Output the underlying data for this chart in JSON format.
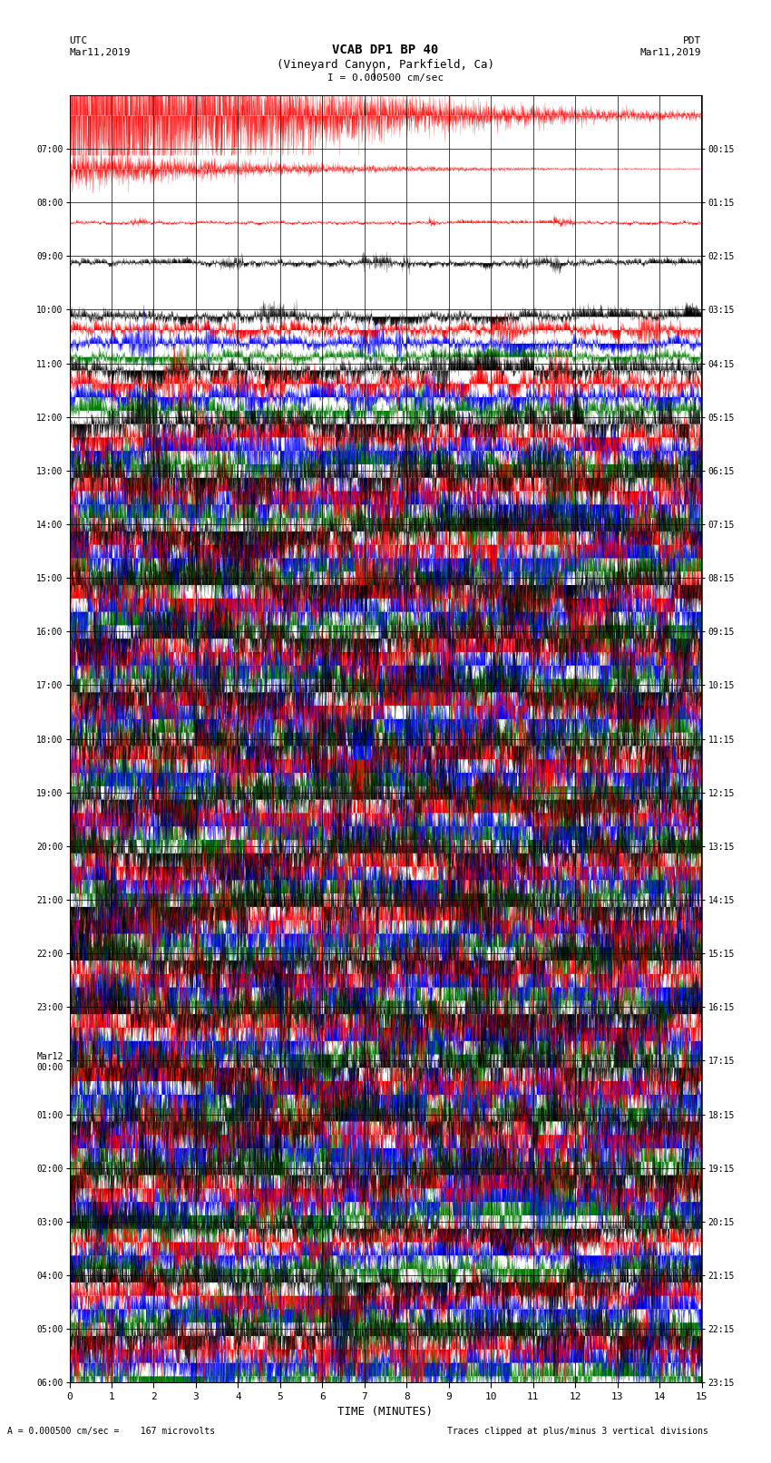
{
  "title_line1": "VCAB DP1 BP 40",
  "title_line2": "(Vineyard Canyon, Parkfield, Ca)",
  "scale_text": "I = 0.000500 cm/sec",
  "left_label": "UTC",
  "left_date": "Mar11,2019",
  "right_label": "PDT",
  "right_date": "Mar11,2019",
  "bottom_label": "TIME (MINUTES)",
  "bottom_note": "A = 0.000500 cm/sec =    167 microvolts",
  "clip_note": "Traces clipped at plus/minus 3 vertical divisions",
  "xlabel_ticks": [
    0,
    1,
    2,
    3,
    4,
    5,
    6,
    7,
    8,
    9,
    10,
    11,
    12,
    13,
    14,
    15
  ],
  "utc_labels": [
    "07:00",
    "08:00",
    "09:00",
    "10:00",
    "11:00",
    "12:00",
    "13:00",
    "14:00",
    "15:00",
    "16:00",
    "17:00",
    "18:00",
    "19:00",
    "20:00",
    "21:00",
    "22:00",
    "23:00",
    "Mar12\n00:00",
    "01:00",
    "02:00",
    "03:00",
    "04:00",
    "05:00",
    "06:00"
  ],
  "pdt_labels": [
    "00:15",
    "01:15",
    "02:15",
    "03:15",
    "04:15",
    "05:15",
    "06:15",
    "07:15",
    "08:15",
    "09:15",
    "10:15",
    "11:15",
    "12:15",
    "13:15",
    "14:15",
    "15:15",
    "16:15",
    "17:15",
    "18:15",
    "19:15",
    "20:15",
    "21:15",
    "22:15",
    "23:15"
  ],
  "n_rows": 24,
  "n_traces": 4,
  "colors": [
    "red",
    "blue",
    "green",
    "black"
  ],
  "bg_color": "white",
  "plot_bg": "white",
  "minutes_per_row": 15,
  "figwidth": 8.5,
  "figheight": 16.13,
  "row_amp_profile": [
    0.35,
    0.15,
    0.03,
    0.06,
    0.12,
    0.2,
    0.3,
    0.4,
    0.42,
    0.44,
    0.44,
    0.44,
    0.44,
    0.44,
    0.44,
    0.44,
    0.44,
    0.44,
    0.44,
    0.44,
    0.44,
    0.3,
    0.35,
    0.38
  ],
  "trace_active": [
    [
      0
    ],
    [
      0
    ],
    [
      0
    ],
    [
      3
    ],
    [
      3,
      0,
      1,
      2
    ],
    [
      3,
      0,
      1,
      2
    ],
    [
      3,
      0,
      1,
      2
    ],
    [
      3,
      0,
      1,
      2
    ],
    [
      3,
      0,
      1,
      2
    ],
    [
      3,
      0,
      1,
      2
    ],
    [
      3,
      0,
      1,
      2
    ],
    [
      3,
      0,
      1,
      2
    ],
    [
      3,
      0,
      1,
      2
    ],
    [
      3,
      0,
      1,
      2
    ],
    [
      3,
      0,
      1,
      2
    ],
    [
      3,
      0,
      1,
      2
    ],
    [
      3,
      0,
      1,
      2
    ],
    [
      3,
      0,
      1,
      2
    ],
    [
      3,
      0,
      1,
      2
    ],
    [
      3,
      0,
      1,
      2
    ],
    [
      3,
      0,
      1,
      2
    ],
    [
      3,
      0,
      1,
      2
    ],
    [
      3,
      0,
      1,
      2
    ],
    [
      3,
      0,
      1,
      2
    ]
  ]
}
